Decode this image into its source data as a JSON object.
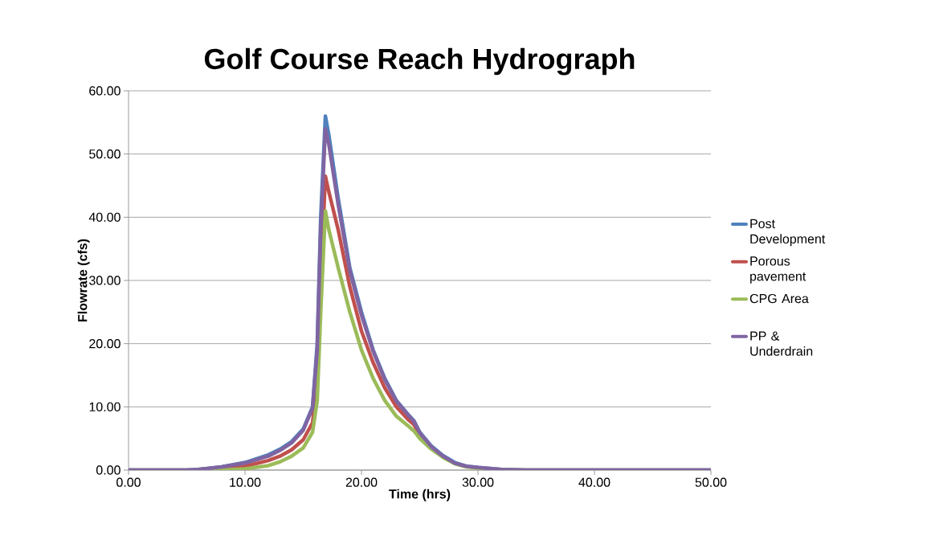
{
  "chart_data": {
    "type": "line",
    "title": "Golf Course Reach Hydrograph",
    "xlabel": "Time (hrs)",
    "ylabel": "Flowrate (cfs)",
    "x": [
      0,
      5,
      6,
      8,
      10,
      12,
      13,
      14,
      15,
      15.8,
      16.2,
      16.5,
      16.9,
      17.2,
      18,
      19,
      20,
      21,
      22,
      23,
      24,
      24.5,
      25,
      26,
      27,
      28,
      29,
      30,
      32,
      34,
      50
    ],
    "series": [
      {
        "name": "Post Development",
        "color": "#4f81bd",
        "values": [
          0,
          0,
          0.1,
          0.5,
          1.2,
          2.4,
          3.3,
          4.5,
          6.5,
          10,
          20,
          40,
          56,
          53,
          43,
          32,
          25,
          19,
          14.5,
          11,
          8.8,
          7.8,
          6,
          3.8,
          2.3,
          1.2,
          0.6,
          0.4,
          0.1,
          0,
          0
        ]
      },
      {
        "name": "Porous pavement",
        "color": "#c0504d",
        "values": [
          null,
          null,
          0.1,
          0.3,
          0.6,
          1.5,
          2.2,
          3.2,
          4.8,
          7.5,
          14,
          30,
          46.5,
          44,
          38,
          29,
          22,
          17,
          13,
          10,
          8,
          7.2,
          5.6,
          3.6,
          null,
          null,
          null,
          null,
          null,
          null,
          null
        ]
      },
      {
        "name": "CPG Area",
        "color": "#9bbb59",
        "values": [
          0,
          0,
          0,
          0,
          0.2,
          0.7,
          1.3,
          2.2,
          3.5,
          6,
          11,
          25,
          41,
          38,
          32,
          25,
          19,
          14.5,
          11,
          8.5,
          7,
          6.2,
          5,
          3.3,
          2,
          1,
          0.5,
          0.3,
          0.1,
          0,
          0
        ]
      },
      {
        "name": "PP & Underdrain",
        "color": "#8064a2",
        "values": [
          0,
          0,
          0.1,
          0.5,
          1.1,
          2.2,
          3.1,
          4.3,
          6.3,
          9.8,
          19,
          38,
          54,
          51.5,
          42,
          31.5,
          24.5,
          18.8,
          14.3,
          10.9,
          8.7,
          7.7,
          5.9,
          3.7,
          2.2,
          1.1,
          0.6,
          0.4,
          0.1,
          0,
          0
        ]
      }
    ],
    "xlim": [
      0,
      50
    ],
    "ylim": [
      0,
      60
    ],
    "xticks": [
      {
        "value": 0,
        "label": "0.00"
      },
      {
        "value": 10,
        "label": "10.00"
      },
      {
        "value": 20,
        "label": "20.00"
      },
      {
        "value": 30,
        "label": "30.00"
      },
      {
        "value": 40,
        "label": "40.00"
      },
      {
        "value": 50,
        "label": "50.00"
      }
    ],
    "yticks": [
      {
        "value": 0,
        "label": "0.00"
      },
      {
        "value": 10,
        "label": "10.00"
      },
      {
        "value": 20,
        "label": "20.00"
      },
      {
        "value": 30,
        "label": "30.00"
      },
      {
        "value": 40,
        "label": "40.00"
      },
      {
        "value": 50,
        "label": "50.00"
      },
      {
        "value": 60,
        "label": "60.00"
      }
    ],
    "grid": "y",
    "legend": "right",
    "marker": "none",
    "line_style": "solid"
  }
}
